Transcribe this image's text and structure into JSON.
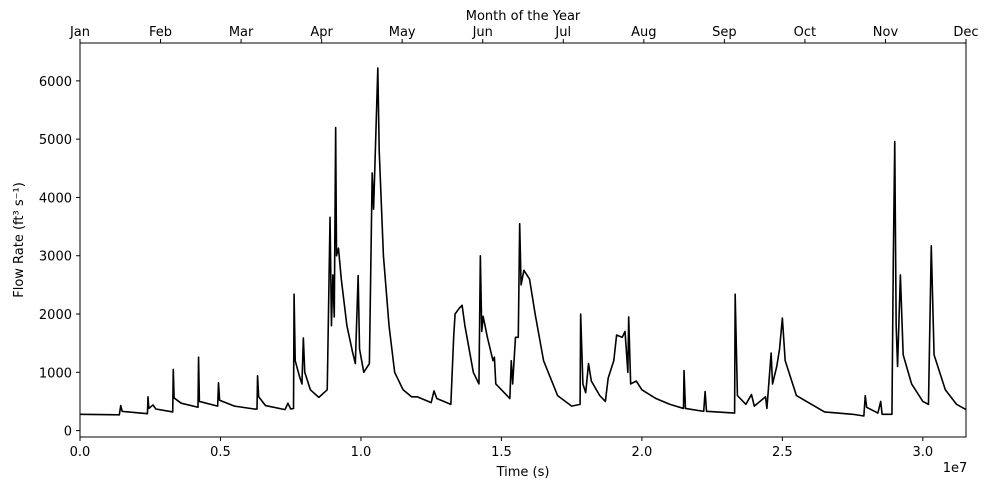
{
  "chart_data": {
    "type": "line",
    "xlabel": "Time (s)",
    "ylabel": "Flow Rate (ft³ s⁻¹)",
    "x2label": "Month of the Year",
    "x_offset_label": "1e7",
    "xlim": [
      0,
      31536000
    ],
    "ylim": [
      -110,
      6650
    ],
    "xticks": [
      {
        "value": 0,
        "label": "0.0"
      },
      {
        "value": 5000000,
        "label": "0.5"
      },
      {
        "value": 10000000,
        "label": "1.0"
      },
      {
        "value": 15000000,
        "label": "1.5"
      },
      {
        "value": 20000000,
        "label": "2.0"
      },
      {
        "value": 25000000,
        "label": "2.5"
      },
      {
        "value": 30000000,
        "label": "3.0"
      }
    ],
    "x2ticks": [
      {
        "value": 0,
        "label": "Jan"
      },
      {
        "value": 2866909,
        "label": "Feb"
      },
      {
        "value": 5733818,
        "label": "Mar"
      },
      {
        "value": 8600727,
        "label": "Apr"
      },
      {
        "value": 11467636,
        "label": "May"
      },
      {
        "value": 14334545,
        "label": "Jun"
      },
      {
        "value": 17201455,
        "label": "Jul"
      },
      {
        "value": 20068364,
        "label": "Aug"
      },
      {
        "value": 22935273,
        "label": "Sep"
      },
      {
        "value": 25802182,
        "label": "Oct"
      },
      {
        "value": 28669091,
        "label": "Nov"
      },
      {
        "value": 31536000,
        "label": "Dec"
      }
    ],
    "yticks": [
      0,
      1000,
      2000,
      3000,
      4000,
      5000,
      6000
    ],
    "x": [
      0,
      1400000,
      1450000,
      1500000,
      2400000,
      2420000,
      2450000,
      2600000,
      2700000,
      3300000,
      3320000,
      3350000,
      3600000,
      4200000,
      4220000,
      4250000,
      4900000,
      4930000,
      4970000,
      5500000,
      6200000,
      6300000,
      6320000,
      6360000,
      6600000,
      7300000,
      7400000,
      7500000,
      7600000,
      7620000,
      7660000,
      7800000,
      7900000,
      7950000,
      8000000,
      8200000,
      8500000,
      8800000,
      8900000,
      8950000,
      9000000,
      9050000,
      9100000,
      9130000,
      9200000,
      9300000,
      9500000,
      9700000,
      9800000,
      9900000,
      9950000,
      10100000,
      10300000,
      10400000,
      10450000,
      10500000,
      10600000,
      10650000,
      10800000,
      11000000,
      11200000,
      11500000,
      11800000,
      12000000,
      12500000,
      12600000,
      12700000,
      13200000,
      13300000,
      13350000,
      13500000,
      13600000,
      13700000,
      14000000,
      14200000,
      14250000,
      14300000,
      14350000,
      14500000,
      14700000,
      14750000,
      14800000,
      15300000,
      15350000,
      15400000,
      15500000,
      15600000,
      15650000,
      15700000,
      15800000,
      16000000,
      16200000,
      16500000,
      17000000,
      17500000,
      17800000,
      17820000,
      17900000,
      18000000,
      18100000,
      18200000,
      18500000,
      18700000,
      18800000,
      19000000,
      19100000,
      19300000,
      19400000,
      19500000,
      19530000,
      19600000,
      19800000,
      20000000,
      20500000,
      21000000,
      21480000,
      21500000,
      21550000,
      22200000,
      22250000,
      22300000,
      23300000,
      23320000,
      23400000,
      23700000,
      23900000,
      24000000,
      24400000,
      24450000,
      24600000,
      24650000,
      24800000,
      24900000,
      25000000,
      25100000,
      25500000,
      26500000,
      27500000,
      27900000,
      27950000,
      28000000,
      28400000,
      28500000,
      28550000,
      28900000,
      28950000,
      29000000,
      29050000,
      29100000,
      29200000,
      29300000,
      29600000,
      30000000,
      30200000,
      30300000,
      30400000,
      30800000,
      31200000,
      31536000
    ],
    "series": [
      {
        "color": "#000000",
        "values": [
          280,
          270,
          430,
          330,
          290,
          580,
          380,
          440,
          370,
          320,
          1050,
          560,
          470,
          400,
          1260,
          500,
          420,
          820,
          520,
          420,
          370,
          370,
          940,
          580,
          430,
          360,
          470,
          370,
          380,
          2340,
          1200,
          950,
          800,
          1590,
          1000,
          700,
          570,
          700,
          3660,
          1800,
          2670,
          1950,
          5200,
          3000,
          3130,
          2600,
          1800,
          1350,
          1150,
          2660,
          1400,
          1000,
          1150,
          4420,
          3800,
          4600,
          6220,
          4800,
          3000,
          1800,
          1000,
          700,
          580,
          580,
          480,
          680,
          550,
          450,
          1600,
          2000,
          2100,
          2150,
          1800,
          1000,
          800,
          3000,
          1700,
          1960,
          1600,
          1200,
          1260,
          800,
          550,
          1200,
          800,
          1600,
          1600,
          3550,
          2500,
          2750,
          2600,
          2000,
          1200,
          600,
          420,
          450,
          2000,
          800,
          650,
          1150,
          850,
          600,
          500,
          900,
          1200,
          1640,
          1600,
          1700,
          1000,
          1950,
          800,
          850,
          700,
          550,
          450,
          380,
          1030,
          380,
          330,
          670,
          330,
          300,
          2340,
          600,
          450,
          620,
          420,
          580,
          380,
          1330,
          800,
          1100,
          1400,
          1930,
          1200,
          600,
          320,
          280,
          250,
          600,
          400,
          300,
          500,
          280,
          280,
          3000,
          4960,
          1800,
          1100,
          2670,
          1300,
          800,
          500,
          450,
          3170,
          1300,
          700,
          450,
          360
        ]
      }
    ]
  }
}
